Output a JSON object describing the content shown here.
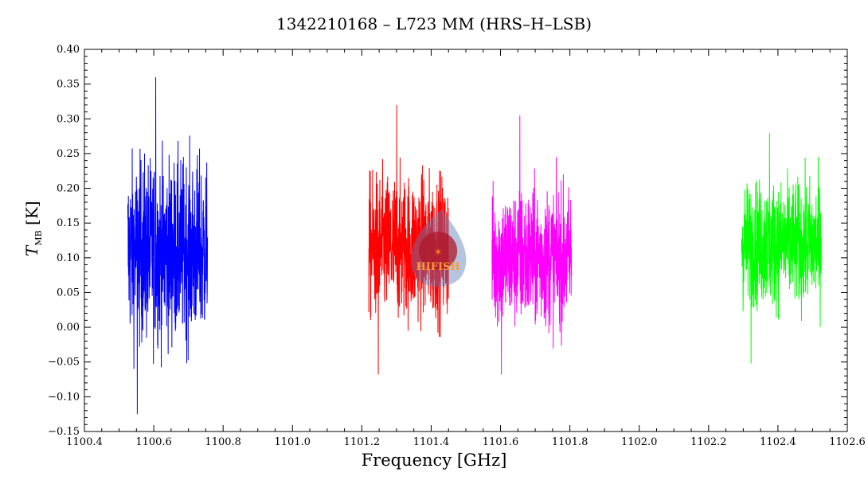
{
  "chart_data": {
    "type": "line",
    "title": "1342210168 – L723 MM (HRS–H–LSB)",
    "xlabel": "Frequency [GHz]",
    "ylabel_symbol": "T",
    "ylabel_sub": "MB",
    "ylabel_unit": "[K]",
    "xlim": [
      1100.4,
      1102.6
    ],
    "ylim": [
      -0.15,
      0.4
    ],
    "xticks": [
      "1100.4",
      "1100.6",
      "1100.8",
      "1101.0",
      "1101.2",
      "1101.4",
      "1101.6",
      "1101.8",
      "1102.0",
      "1102.2",
      "1102.4",
      "1102.6"
    ],
    "yticks": [
      "−0.15",
      "−0.10",
      "−0.05",
      "0.00",
      "0.05",
      "0.10",
      "0.15",
      "0.20",
      "0.25",
      "0.30",
      "0.35",
      "0.40"
    ],
    "grid": false,
    "series": [
      {
        "color": "#0000ff",
        "x_range": [
          1100.525,
          1100.755
        ],
        "mean": 0.11,
        "min": -0.125,
        "max": 0.36
      },
      {
        "color": "#ff0000",
        "x_range": [
          1101.22,
          1101.45
        ],
        "mean": 0.115,
        "min": -0.068,
        "max": 0.32
      },
      {
        "color": "#ff00ff",
        "x_range": [
          1101.575,
          1101.805
        ],
        "mean": 0.1,
        "min": -0.068,
        "max": 0.305
      },
      {
        "color": "#00ff00",
        "x_range": [
          1102.295,
          1102.525
        ],
        "mean": 0.12,
        "min": -0.052,
        "max": 0.28
      }
    ],
    "watermark": {
      "text": "HIFISH",
      "x": 1101.42,
      "y": 0.11
    }
  }
}
